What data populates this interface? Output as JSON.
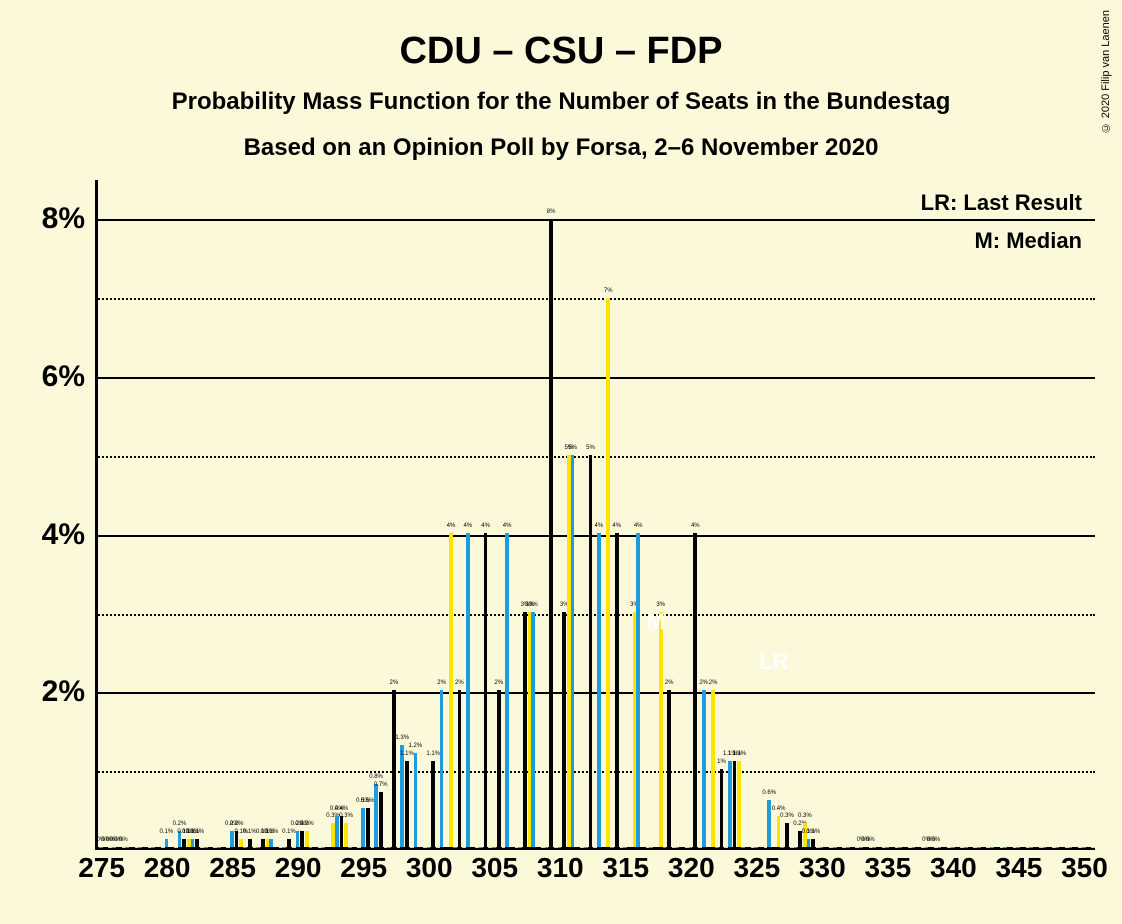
{
  "background_color": "#fcf9da",
  "text_color": "#000000",
  "title": "CDU – CSU – FDP",
  "subtitle1": "Probability Mass Function for the Number of Seats in the Bundestag",
  "subtitle2": "Based on an Opinion Poll by Forsa, 2–6 November 2020",
  "copyright": "© 2020 Filip van Laenen",
  "legend_lr": "LR: Last Result",
  "legend_m": "M: Median",
  "chart": {
    "type": "bar",
    "y_max": 8.5,
    "y_ticks": [
      2,
      4,
      6,
      8
    ],
    "y_tick_labels": [
      "2%",
      "4%",
      "6%",
      "8%"
    ],
    "y_minor": [
      1,
      3,
      5,
      7
    ],
    "x_min": 275,
    "x_max": 350,
    "x_step": 1,
    "x_tick_step": 5,
    "x_tick_labels": [
      "275",
      "280",
      "285",
      "290",
      "295",
      "300",
      "305",
      "310",
      "315",
      "320",
      "325",
      "330",
      "335",
      "340",
      "345",
      "350"
    ],
    "series_colors": [
      "#1d9cdf",
      "#000000",
      "#fde401"
    ],
    "series_count": 3,
    "bar_label_suffix": "%",
    "median_marker": {
      "x": 317,
      "label": "M"
    },
    "lr_marker": {
      "x": 326,
      "label": "LR"
    },
    "marker_color": "#ffffff",
    "data": {
      "275": [
        0,
        0,
        0
      ],
      "276": [
        0,
        0,
        0
      ],
      "277": [
        0,
        0,
        0
      ],
      "278": [
        0,
        0,
        0
      ],
      "279": [
        0,
        0,
        0
      ],
      "280": [
        0.1,
        0,
        0
      ],
      "281": [
        0.2,
        0.1,
        0.1
      ],
      "282": [
        0.1,
        0.1,
        0
      ],
      "283": [
        0,
        0,
        0
      ],
      "284": [
        0,
        0,
        0
      ],
      "285": [
        0.2,
        0.2,
        0.1
      ],
      "286": [
        0,
        0.1,
        0
      ],
      "287": [
        0,
        0.1,
        0.1
      ],
      "288": [
        0.1,
        0,
        0
      ],
      "289": [
        0,
        0.1,
        0
      ],
      "290": [
        0.2,
        0.2,
        0.2
      ],
      "291": [
        0,
        0,
        0
      ],
      "292": [
        0,
        0,
        0.3
      ],
      "293": [
        0.4,
        0.4,
        0.3
      ],
      "294": [
        0,
        0,
        0
      ],
      "295": [
        0.5,
        0.5,
        0
      ],
      "296": [
        0.8,
        0.7,
        0
      ],
      "297": [
        0,
        2,
        0
      ],
      "298": [
        1.3,
        1.1,
        0
      ],
      "299": [
        1.2,
        0,
        0
      ],
      "300": [
        0,
        1.1,
        0
      ],
      "301": [
        2,
        0,
        4
      ],
      "302": [
        0,
        2,
        0
      ],
      "303": [
        4,
        0,
        0
      ],
      "304": [
        0,
        4,
        0
      ],
      "305": [
        0,
        2,
        0
      ],
      "306": [
        4,
        0,
        0
      ],
      "307": [
        0,
        3,
        3
      ],
      "308": [
        3,
        0,
        0
      ],
      "309": [
        0,
        8,
        0
      ],
      "310": [
        0,
        3,
        5
      ],
      "311": [
        5,
        0,
        0
      ],
      "312": [
        0,
        5,
        0
      ],
      "313": [
        4,
        0,
        7
      ],
      "314": [
        0,
        4,
        0
      ],
      "315": [
        0,
        0,
        3
      ],
      "316": [
        4,
        0,
        0
      ],
      "317": [
        0,
        0,
        3
      ],
      "318": [
        0,
        2,
        0
      ],
      "319": [
        0,
        0,
        0
      ],
      "320": [
        0,
        4,
        0
      ],
      "321": [
        2,
        0,
        2
      ],
      "322": [
        0,
        1,
        0
      ],
      "323": [
        1.1,
        1.1,
        1.1
      ],
      "324": [
        0,
        0,
        0
      ],
      "325": [
        0,
        0,
        0
      ],
      "326": [
        0.6,
        0,
        0.4
      ],
      "327": [
        0,
        0.3,
        0
      ],
      "328": [
        0,
        0.2,
        0.3
      ],
      "329": [
        0.1,
        0.1,
        0
      ],
      "330": [
        0,
        0,
        0
      ],
      "331": [
        0,
        0,
        0
      ],
      "332": [
        0,
        0,
        0
      ],
      "333": [
        0,
        0,
        0
      ],
      "334": [
        0,
        0,
        0
      ],
      "335": [
        0,
        0,
        0
      ],
      "336": [
        0,
        0,
        0
      ],
      "337": [
        0,
        0,
        0
      ],
      "338": [
        0,
        0,
        0
      ],
      "339": [
        0,
        0,
        0
      ],
      "340": [
        0,
        0,
        0
      ],
      "341": [
        0,
        0,
        0
      ],
      "342": [
        0,
        0,
        0
      ],
      "343": [
        0,
        0,
        0
      ],
      "344": [
        0,
        0,
        0
      ],
      "345": [
        0,
        0,
        0
      ],
      "346": [
        0,
        0,
        0
      ],
      "347": [
        0,
        0,
        0
      ],
      "348": [
        0,
        0,
        0
      ],
      "349": [
        0,
        0,
        0
      ],
      "350": [
        0,
        0,
        0
      ]
    },
    "data_overrides": {
      "275": [
        [
          0,
          "0%"
        ],
        [
          0,
          "0%"
        ],
        [
          0,
          "0%"
        ]
      ],
      "276": [
        [
          0,
          "0%"
        ],
        [
          0,
          "0%"
        ],
        [
          0,
          "0%"
        ]
      ],
      "280": [
        [
          0.1,
          "0.1%"
        ]
      ],
      "281": [
        [
          0.2,
          "0.2%"
        ],
        [
          0.1,
          "0.1%"
        ],
        [
          0.1,
          "0.1%"
        ]
      ],
      "282": [
        [
          0.1,
          "0.1%"
        ],
        [
          0.1,
          "0.1%"
        ]
      ],
      "285": [
        [
          0.2,
          "0.2%"
        ],
        [
          0.2,
          "0.2%"
        ],
        [
          0.1,
          "0.1%"
        ]
      ],
      "286": [
        null,
        [
          0.1,
          "0.1%"
        ]
      ],
      "287": [
        null,
        [
          0.1,
          "0.1%"
        ],
        [
          0.1,
          "0.1%"
        ]
      ],
      "288": [
        [
          0.1,
          "0.1%"
        ]
      ],
      "289": [
        null,
        [
          0.1,
          "0.1%"
        ]
      ],
      "290": [
        [
          0.2,
          "0.2%"
        ],
        [
          0.2,
          "0.2%"
        ],
        [
          0.2,
          "0.2%"
        ]
      ],
      "292": [
        null,
        null,
        [
          0.3,
          "0.3%"
        ]
      ],
      "293": [
        [
          0.4,
          "0.4%"
        ],
        [
          0.4,
          "0.4%"
        ],
        [
          0.3,
          "0.3%"
        ]
      ],
      "295": [
        [
          0.5,
          "0.5%"
        ],
        [
          0.5,
          "0.5%"
        ]
      ],
      "296": [
        [
          0.8,
          "0.8%"
        ],
        [
          0.7,
          "0.7%"
        ]
      ],
      "297": [
        null,
        [
          2,
          "2%"
        ]
      ],
      "298": [
        [
          1.3,
          "1.3%"
        ],
        [
          1.1,
          "1.1%"
        ]
      ],
      "299": [
        [
          1.2,
          "1.2%"
        ]
      ],
      "300": [
        null,
        [
          1.1,
          "1.1%"
        ]
      ],
      "301": [
        [
          2,
          "2%"
        ],
        null,
        [
          4,
          "4%"
        ]
      ],
      "302": [
        null,
        [
          2,
          "2%"
        ]
      ],
      "303": [
        [
          4,
          "4%"
        ]
      ],
      "304": [
        null,
        [
          4,
          "4%"
        ]
      ],
      "305": [
        null,
        [
          2,
          "2%"
        ]
      ],
      "306": [
        [
          4,
          "4%"
        ]
      ],
      "307": [
        null,
        [
          3,
          "3%"
        ],
        [
          3,
          "3%"
        ]
      ],
      "308": [
        [
          3,
          "3%"
        ]
      ],
      "309": [
        null,
        [
          8,
          "8%"
        ]
      ],
      "310": [
        null,
        [
          3,
          "3%"
        ],
        [
          5,
          "5%"
        ]
      ],
      "311": [
        [
          5,
          "5%"
        ]
      ],
      "312": [
        null,
        [
          5,
          "5%"
        ]
      ],
      "313": [
        [
          4,
          "4%"
        ],
        null,
        [
          7,
          "7%"
        ]
      ],
      "314": [
        null,
        [
          4,
          "4%"
        ]
      ],
      "315": [
        null,
        null,
        [
          3,
          "3%"
        ]
      ],
      "316": [
        [
          4,
          "4%"
        ]
      ],
      "317": [
        null,
        null,
        [
          3,
          "3%"
        ]
      ],
      "318": [
        null,
        [
          2,
          "2%"
        ]
      ],
      "320": [
        null,
        [
          4,
          "4%"
        ]
      ],
      "321": [
        [
          2,
          "2%"
        ],
        null,
        [
          2,
          "2%"
        ]
      ],
      "322": [
        null,
        [
          1,
          "1%"
        ]
      ],
      "323": [
        [
          1.1,
          "1.1%"
        ],
        [
          1.1,
          "1.1%"
        ],
        [
          1.1,
          "1.1%"
        ]
      ],
      "326": [
        [
          0.6,
          "0.6%"
        ],
        null,
        [
          0.4,
          "0.4%"
        ]
      ],
      "327": [
        null,
        [
          0.3,
          "0.3%"
        ]
      ],
      "328": [
        null,
        [
          0.2,
          "0.2%"
        ],
        [
          0.3,
          "0.3%"
        ]
      ],
      "329": [
        [
          0.1,
          "0.1%"
        ],
        [
          0.1,
          "0.1%"
        ]
      ],
      "333": [
        [
          0,
          "0%"
        ],
        [
          0,
          "0%"
        ],
        [
          0,
          "0%"
        ]
      ],
      "338": [
        [
          0,
          "0%"
        ],
        [
          0,
          "0%"
        ],
        [
          0,
          "0%"
        ]
      ]
    }
  }
}
